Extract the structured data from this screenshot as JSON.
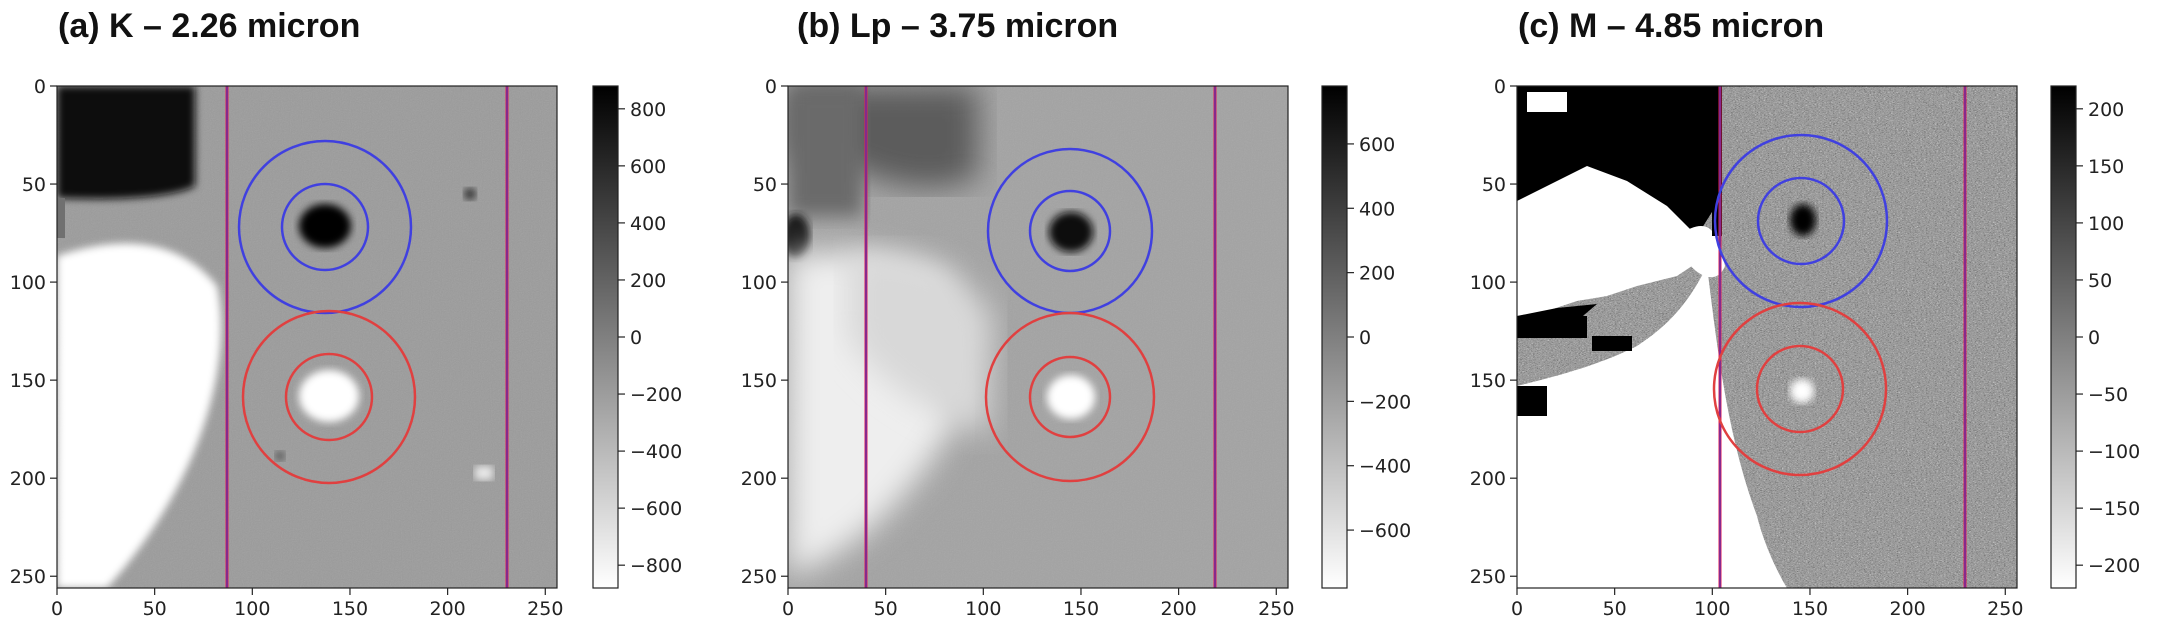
{
  "chart_data": [
    {
      "type": "heatmap",
      "title": "(a) K – 2.26 micron",
      "xlim": [
        0,
        256
      ],
      "ylim": [
        256,
        0
      ],
      "x_ticks": [
        0,
        50,
        100,
        150,
        200,
        250
      ],
      "y_ticks": [
        0,
        50,
        100,
        150,
        200,
        250
      ],
      "colorbar": {
        "min": -880,
        "max": 880,
        "ticks": [
          800,
          600,
          400,
          200,
          0,
          -200,
          -400,
          -600,
          -800
        ],
        "cmap": "gray_r"
      },
      "vertical_lines": [
        87,
        230
      ],
      "apertures": [
        {
          "color": "#4040e0",
          "cx": 137,
          "cy": 72,
          "radii": [
            22,
            44
          ]
        },
        {
          "color": "#e04040",
          "cx": 139,
          "cy": 159,
          "radii": [
            22,
            44
          ]
        }
      ],
      "features": {
        "dark_spot": [
          137,
          72
        ],
        "bright_spot": [
          139,
          159
        ]
      }
    },
    {
      "type": "heatmap",
      "title": "(b) Lp – 3.75 micron",
      "xlim": [
        0,
        256
      ],
      "ylim": [
        256,
        0
      ],
      "x_ticks": [
        0,
        50,
        100,
        150,
        200,
        250
      ],
      "y_ticks": [
        0,
        50,
        100,
        150,
        200,
        250
      ],
      "colorbar": {
        "min": -780,
        "max": 780,
        "ticks": [
          600,
          400,
          200,
          0,
          -200,
          -400,
          -600
        ],
        "cmap": "gray_r"
      },
      "vertical_lines": [
        40,
        218
      ],
      "apertures": [
        {
          "color": "#4040e0",
          "cx": 142,
          "cy": 74,
          "radii": [
            20,
            42
          ]
        },
        {
          "color": "#e04040",
          "cx": 142,
          "cy": 159,
          "radii": [
            20,
            43
          ]
        }
      ],
      "features": {
        "dark_spot": [
          142,
          74
        ],
        "bright_spot": [
          142,
          159
        ]
      }
    },
    {
      "type": "heatmap",
      "title": "(c) M – 4.85 micron",
      "xlim": [
        0,
        256
      ],
      "ylim": [
        256,
        0
      ],
      "x_ticks": [
        0,
        50,
        100,
        150,
        200,
        250
      ],
      "y_ticks": [
        0,
        50,
        100,
        150,
        200,
        250
      ],
      "colorbar": {
        "min": -220,
        "max": 220,
        "ticks": [
          200,
          150,
          100,
          50,
          0,
          -50,
          -100,
          -150,
          -200
        ],
        "cmap": "gray_r"
      },
      "vertical_lines": [
        104,
        229
      ],
      "apertures": [
        {
          "color": "#4040e0",
          "cx": 145,
          "cy": 69,
          "radii": [
            22,
            44
          ]
        },
        {
          "color": "#e04040",
          "cx": 144,
          "cy": 155,
          "radii": [
            22,
            44
          ]
        }
      ],
      "features": {
        "dark_spot": [
          145,
          69
        ],
        "bright_spot": [
          144,
          155
        ]
      }
    }
  ]
}
